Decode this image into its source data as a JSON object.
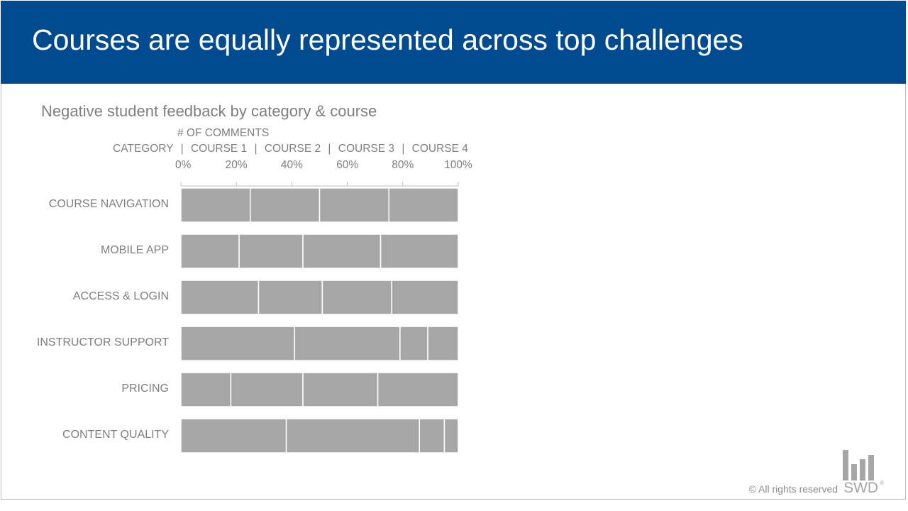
{
  "header": {
    "title": "Courses are equally represented across top challenges"
  },
  "chart_data": {
    "type": "bar",
    "orientation": "horizontal",
    "stacked": true,
    "normalized": true,
    "title": "Negative student feedback by category & course",
    "xlabel": "# OF COMMENTS",
    "legend_line": [
      "CATEGORY",
      "COURSE 1",
      "COURSE 2",
      "COURSE 3",
      "COURSE 4"
    ],
    "xlim": [
      0,
      100
    ],
    "x_ticks": [
      "0%",
      "20%",
      "40%",
      "60%",
      "80%",
      "100%"
    ],
    "grid": false,
    "bar_color": "#a6a6a6",
    "categories": [
      "COURSE NAVIGATION",
      "MOBILE APP",
      "ACCESS & LOGIN",
      "INSTRUCTOR SUPPORT",
      "PRICING",
      "CONTENT QUALITY"
    ],
    "series": [
      {
        "name": "COURSE 1",
        "values": [
          25,
          21,
          28,
          41,
          18,
          38
        ]
      },
      {
        "name": "COURSE 2",
        "values": [
          25,
          23,
          23,
          38,
          26,
          48
        ]
      },
      {
        "name": "COURSE 3",
        "values": [
          25,
          28,
          25,
          10,
          27,
          9
        ]
      },
      {
        "name": "COURSE 4",
        "values": [
          25,
          28,
          24,
          11,
          29,
          5
        ]
      }
    ]
  },
  "footer": {
    "copyright": "© All rights reserved",
    "logo_text": "SWD",
    "logo_mark": "®"
  }
}
